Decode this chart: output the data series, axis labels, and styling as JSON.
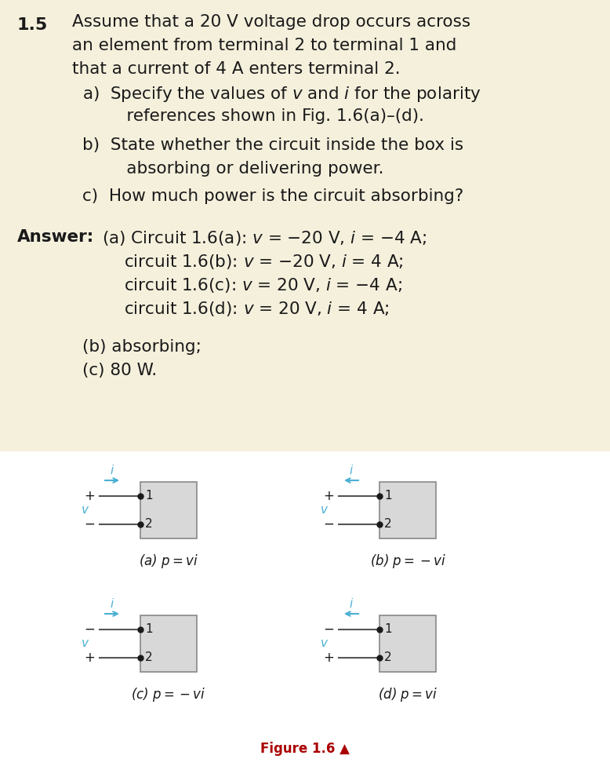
{
  "bg_beige": "#f5f0dc",
  "bg_white": "#ffffff",
  "text_color": "#1a1a1a",
  "cyan_color": "#4ab0d4",
  "box_fill": "#d8d8d8",
  "box_edge": "#888888",
  "dot_color": "#1a1a1a",
  "wire_color": "#555555",
  "fig_label_color": "#aa0000",
  "title_num": "1.5",
  "line1": "Assume that a 20 V voltage drop occurs across",
  "line2": "an element from terminal 2 to terminal 1 and",
  "line3": "that a current of 4 A enters terminal 2.",
  "a_line1": "a)  Specify the values of $v$ and $i$ for the polarity",
  "a_line2": "     references shown in Fig. 1.6(a)–(d).",
  "b_line1": "b)  State whether the circuit inside the box is",
  "b_line2": "     absorbing or delivering power.",
  "c_line1": "c)  How much power is the circuit absorbing?",
  "ans_label": "Answer:",
  "ans_a1": "(a) Circuit 1.6(a): $v$ = −20 V, $i$ = −4 A;",
  "ans_a2": "circuit 1.6(b): $v$ = −20 V, $i$ = 4 A;",
  "ans_a3": "circuit 1.6(c): $v$ = 20 V, $i$ = −4 A;",
  "ans_a4": "circuit 1.6(d): $v$ = 20 V, $i$ = 4 A;",
  "ans_b": "(b) absorbing;",
  "ans_c": "(c) 80 W.",
  "cap_a": "(a) $p = vi$",
  "cap_b": "(b) $p = -vi$",
  "cap_c": "(c) $p = -vi$",
  "cap_d": "(d) $p = vi$",
  "fig_caption": "Figure 1.6 ▲"
}
